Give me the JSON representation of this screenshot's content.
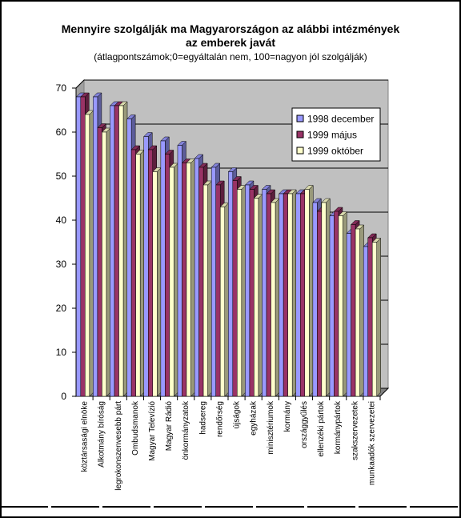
{
  "chart_data": {
    "type": "bar3d",
    "title": "Mennyire szolgálják ma Magyarországon az alábbi intézmények az emberek javát",
    "subtitle": "(átlagpontszámok;0=egyáltalán nem, 100=nagyon jól szolgálják)",
    "categories": [
      "köztársasági elnöke",
      "Alkotmány bíróság",
      "legrokonszenvesebb párt",
      "Ombudsmanok",
      "Magyar Televízió",
      "Magyar Rádió",
      "önkormányzatok",
      "hadsereg",
      "rendőrség",
      "újságok",
      "egyházak",
      "minisztériumok",
      "kormány",
      "országgyűlés",
      "ellenzéki pártok",
      "kormánypártok",
      "szakszervezetek",
      "munkaadók szervezetei"
    ],
    "series": [
      {
        "name": "1998 december",
        "color": "#9999ff",
        "values": [
          68,
          68,
          66,
          63,
          59,
          58,
          57,
          54,
          52,
          51,
          48,
          47,
          46,
          46,
          44,
          41,
          37,
          34
        ]
      },
      {
        "name": "1999 május",
        "color": "#993366",
        "values": [
          68,
          61,
          66,
          56,
          56,
          55,
          53,
          52,
          48,
          49,
          47,
          46,
          46,
          46,
          42,
          42,
          39,
          36
        ]
      },
      {
        "name": "1999 október",
        "color": "#ffffcc",
        "values": [
          64,
          60,
          66,
          55,
          51,
          52,
          53,
          48,
          43,
          47,
          45,
          44,
          46,
          47,
          44,
          41,
          38,
          35
        ]
      }
    ],
    "ylim": [
      0,
      70
    ],
    "yticks": [
      0,
      10,
      20,
      30,
      40,
      50,
      60,
      70
    ],
    "grid": true,
    "legend": "top-right"
  }
}
